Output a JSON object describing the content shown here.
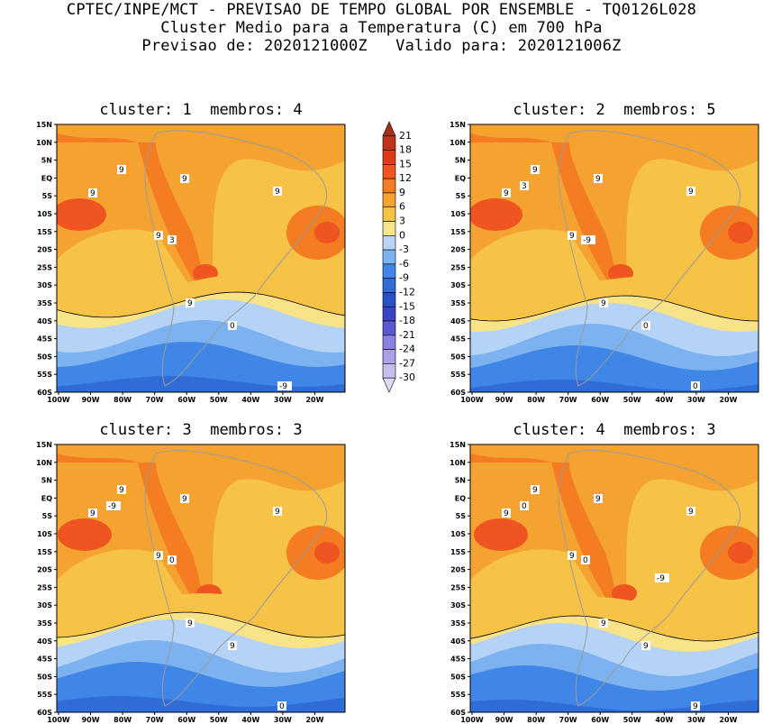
{
  "header": {
    "line1": "CPTEC/INPE/MCT - PREVISAO DE TEMPO GLOBAL POR ENSEMBLE - TQ0126L028",
    "line2": "Cluster Medio para a Temperatura (C) em 700 hPa",
    "line3": "Previsao de: 2020121000Z   Valido para: 2020121006Z"
  },
  "panels": [
    {
      "title": "cluster: 1  membros: 4",
      "labels": [
        "9",
        "9",
        "9",
        "9",
        "9",
        "9",
        "0",
        "-9",
        "3"
      ]
    },
    {
      "title": "cluster: 2  membros: 5",
      "labels": [
        "9",
        "9",
        "9",
        "9",
        "9",
        "9",
        "0",
        "0",
        "-9",
        "3"
      ]
    },
    {
      "title": "cluster: 3  membros: 3",
      "labels": [
        "9",
        "9",
        "9",
        "9",
        "9",
        "9",
        "9",
        "0",
        "0",
        "-9"
      ]
    },
    {
      "title": "cluster: 4  membros: 3",
      "labels": [
        "9",
        "9",
        "9",
        "9",
        "9",
        "9",
        "9",
        "9",
        "0",
        "0",
        "-9"
      ]
    }
  ],
  "axes": {
    "lat_ticks": [
      "15N",
      "10N",
      "5N",
      "EQ",
      "5S",
      "10S",
      "15S",
      "20S",
      "25S",
      "30S",
      "35S",
      "40S",
      "45S",
      "50S",
      "55S",
      "60S"
    ],
    "lon_ticks": [
      "100W",
      "90W",
      "80W",
      "70W",
      "60W",
      "50W",
      "40W",
      "30W",
      "20W"
    ]
  },
  "colorbar": {
    "levels": [
      "21",
      "18",
      "15",
      "12",
      "9",
      "6",
      "3",
      "0",
      "-3",
      "-6",
      "-9",
      "-12",
      "-15",
      "-18",
      "-21",
      "-24",
      "-27",
      "-30"
    ],
    "colors": [
      "#a32e1e",
      "#c0321a",
      "#df3b16",
      "#ef5520",
      "#f47c23",
      "#f5a330",
      "#f6c346",
      "#f9e389",
      "#b4d3f7",
      "#7cb2f0",
      "#3f86e6",
      "#2f6cd6",
      "#2a52c8",
      "#3a44c4",
      "#5a57d0",
      "#8a80de",
      "#ad9fe8",
      "#c9bdf0",
      "#e2d9f7"
    ]
  },
  "colors": {
    "land_outline": "#9b9b9b",
    "contour": "#000000"
  }
}
